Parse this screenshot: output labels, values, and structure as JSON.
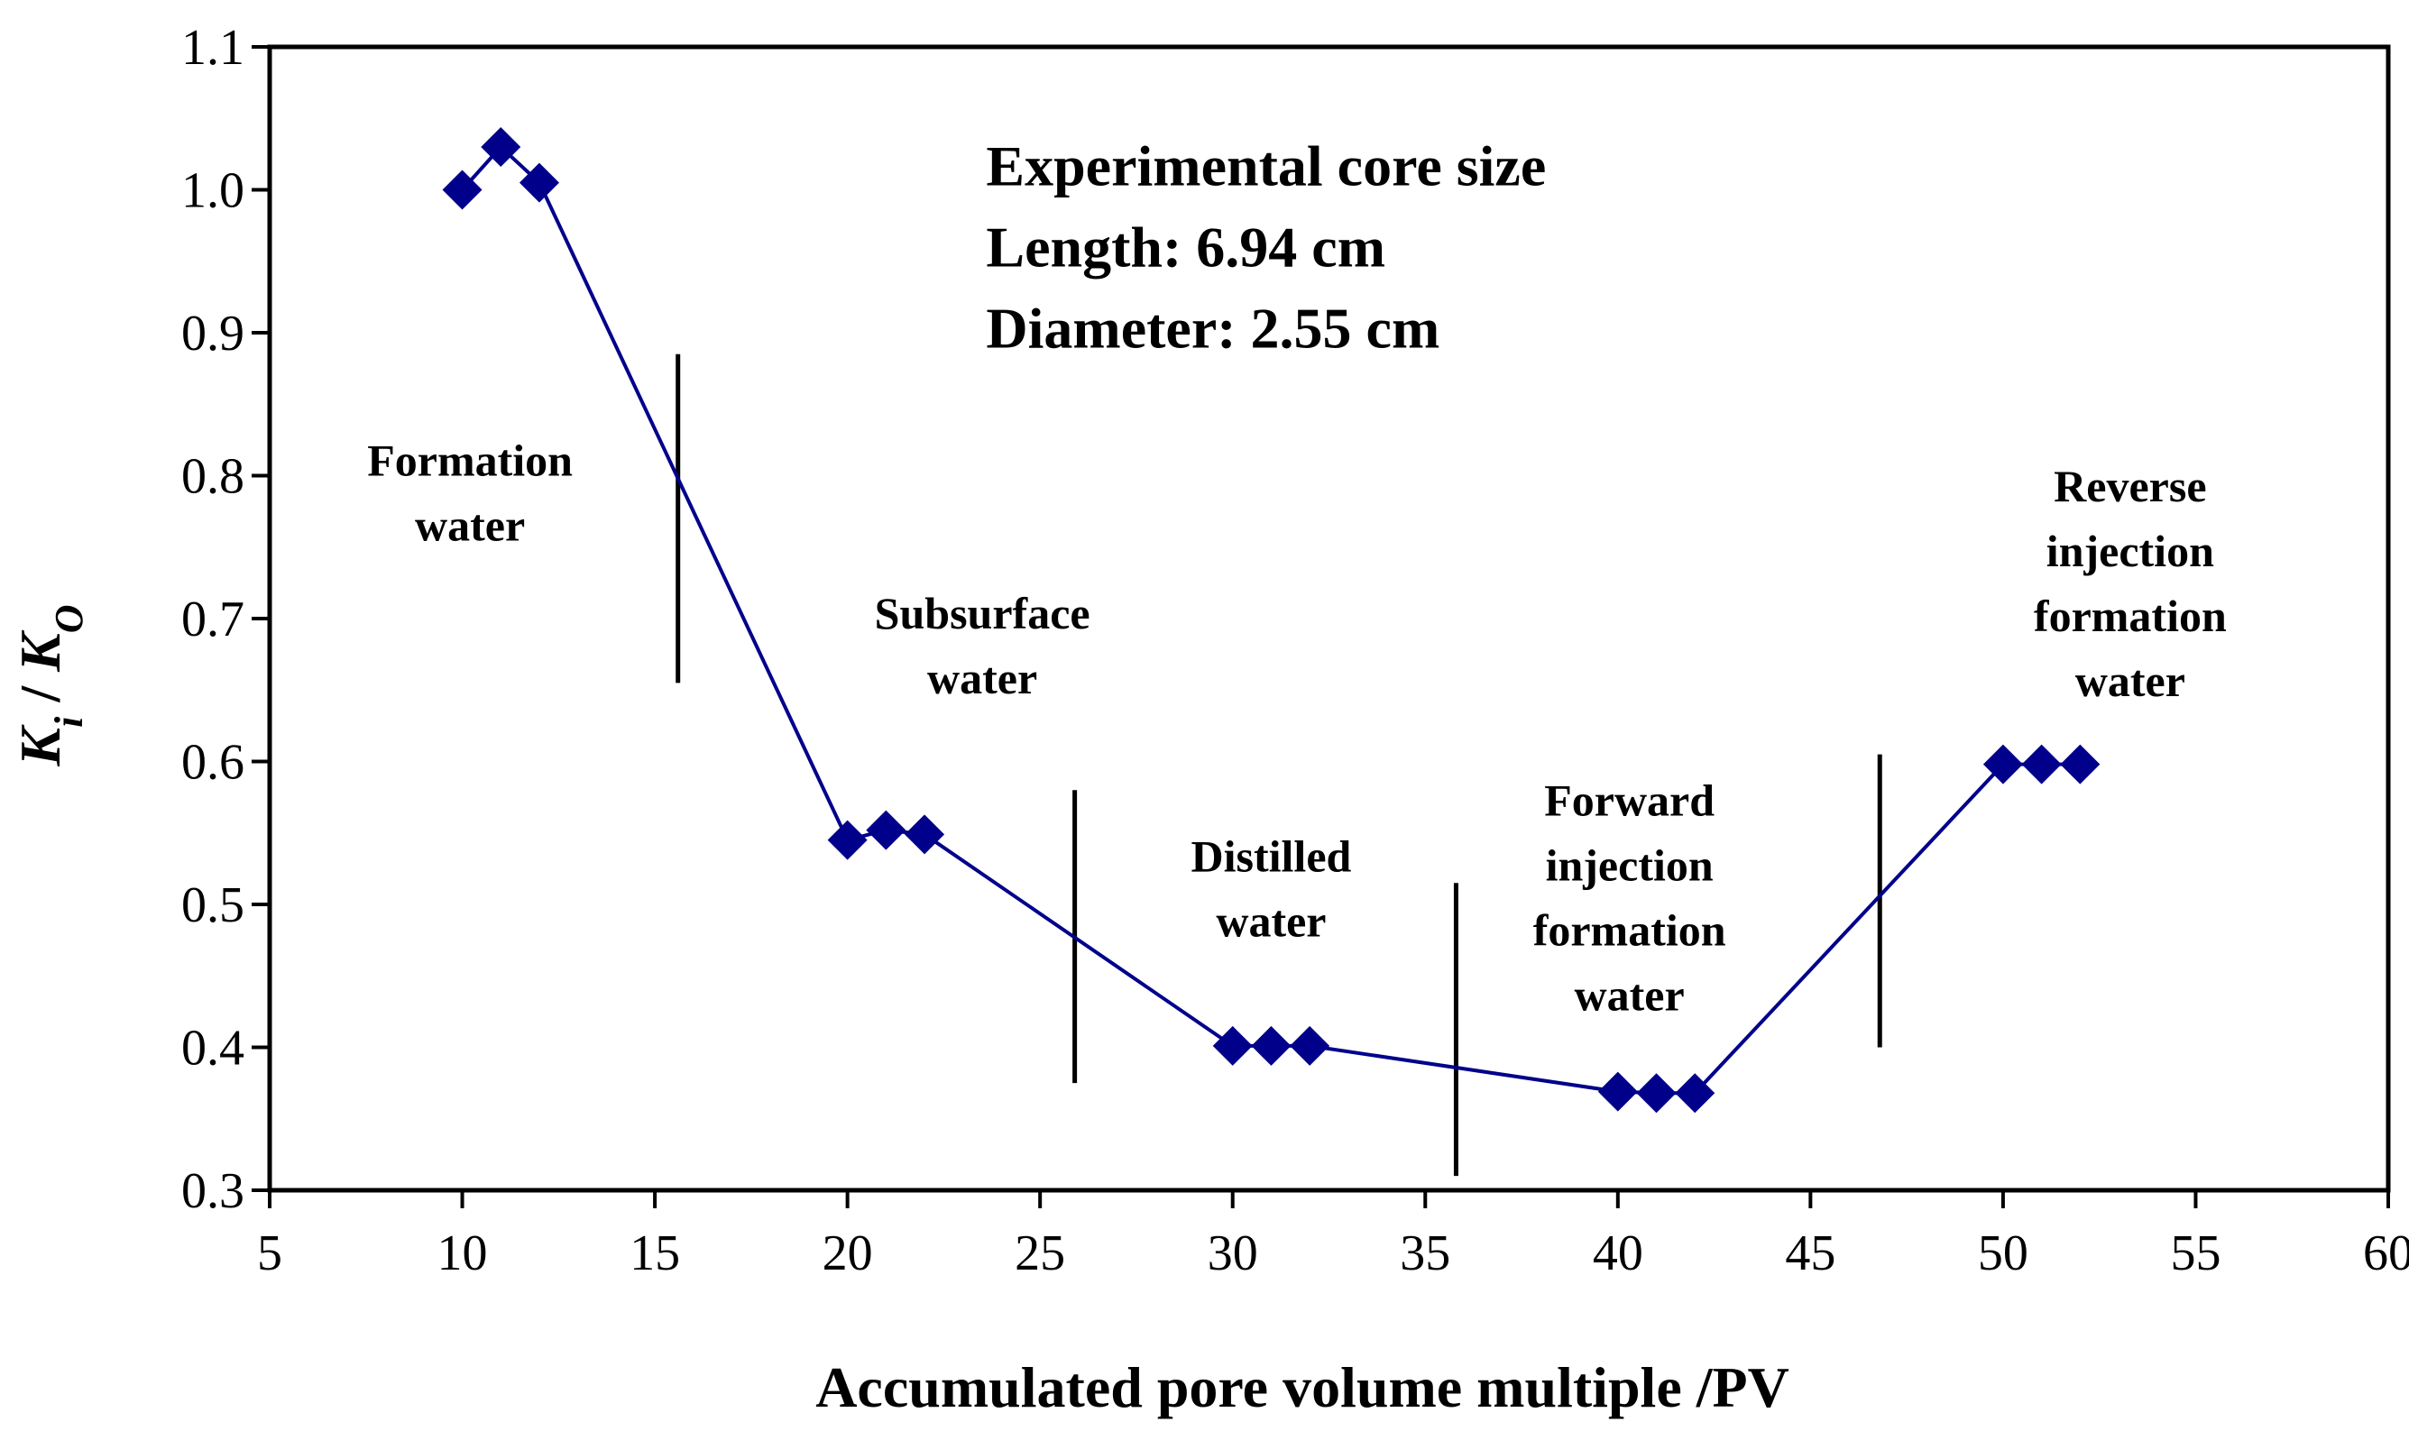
{
  "chart_data": {
    "type": "line",
    "title": "",
    "xlabel": "Accumulated pore volume multiple /PV",
    "ylabel": {
      "k": "K",
      "i": "i",
      "sep": " / ",
      "o": "O"
    },
    "xlim": [
      5,
      60
    ],
    "ylim": [
      0.3,
      1.1
    ],
    "xticks": [
      5,
      10,
      15,
      20,
      25,
      30,
      35,
      40,
      45,
      50,
      55,
      60
    ],
    "yticks": [
      "0.3",
      "0.4",
      "0.5",
      "0.6",
      "0.7",
      "0.8",
      "0.9",
      "1.0",
      "1.1"
    ],
    "series": [
      {
        "name": "Ki/Ko",
        "color": "#00008B",
        "marker": "diamond",
        "x": [
          10,
          11,
          12,
          20,
          21,
          22,
          30,
          31,
          32,
          40,
          41,
          42,
          50,
          51,
          52
        ],
        "y": [
          1.0,
          1.03,
          1.005,
          0.545,
          0.552,
          0.549,
          0.401,
          0.401,
          0.401,
          0.369,
          0.368,
          0.368,
          0.598,
          0.598,
          0.598
        ]
      }
    ],
    "dividers": [
      {
        "x": 15.6,
        "y0": 0.655,
        "y1": 0.885
      },
      {
        "x": 25.9,
        "y0": 0.375,
        "y1": 0.58
      },
      {
        "x": 35.8,
        "y0": 0.31,
        "y1": 0.515
      },
      {
        "x": 46.8,
        "y0": 0.4,
        "y1": 0.605
      }
    ],
    "annotations": [
      {
        "lines": [
          "Formation",
          "water"
        ],
        "x": 10.2,
        "y": 0.8
      },
      {
        "lines": [
          "Subsurface",
          "water"
        ],
        "x": 23.5,
        "y": 0.693
      },
      {
        "lines": [
          "Distilled",
          "water"
        ],
        "x": 31.0,
        "y": 0.523
      },
      {
        "lines": [
          "Forward",
          "injection",
          "formation",
          "water"
        ],
        "x": 40.3,
        "y": 0.562
      },
      {
        "lines": [
          "Reverse",
          "injection",
          "formation",
          "water"
        ],
        "x": 53.3,
        "y": 0.782
      }
    ],
    "info_box": {
      "lines": [
        "Experimental core size",
        "Length: 6.94 cm",
        "Diameter: 2.55 cm"
      ],
      "x": 23.6,
      "y": 1.003
    }
  }
}
